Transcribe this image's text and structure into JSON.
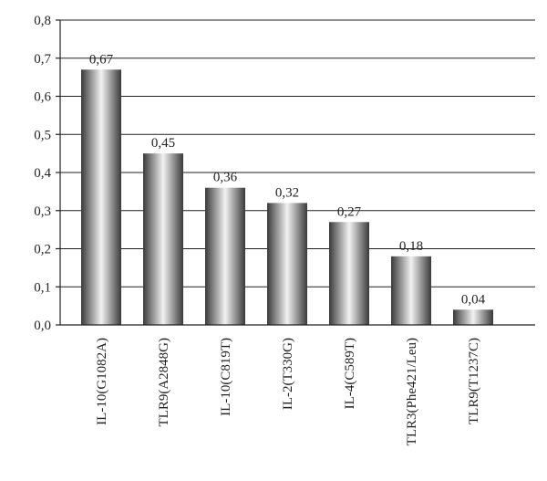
{
  "chart_data": {
    "type": "bar",
    "title": "",
    "xlabel": "",
    "ylabel": "",
    "categories": [
      "IL-10(G1082A)",
      "TLR9(A2848G)",
      "IL-10(C819T)",
      "IL-2(T330G)",
      "IL-4(C589T)",
      "TLR3(Phe421/Leu)",
      "TLR9(T1237C)"
    ],
    "values": [
      0.67,
      0.45,
      0.36,
      0.32,
      0.27,
      0.18,
      0.04
    ],
    "value_labels": [
      "0,67",
      "0,45",
      "0,36",
      "0,32",
      "0,27",
      "0,18",
      "0,04"
    ],
    "ylim": [
      0,
      0.8
    ],
    "yticks": [
      0,
      0.1,
      0.2,
      0.3,
      0.4,
      0.5,
      0.6,
      0.7,
      0.8
    ],
    "ytick_labels": [
      "0,0",
      "0,1",
      "0,2",
      "0,3",
      "0,4",
      "0,5",
      "0,6",
      "0,7",
      "0,8"
    ],
    "grid": true,
    "legend": "none",
    "bar_gradient": [
      "#3a3a3a",
      "#f2f2f2",
      "#3a3a3a"
    ]
  }
}
